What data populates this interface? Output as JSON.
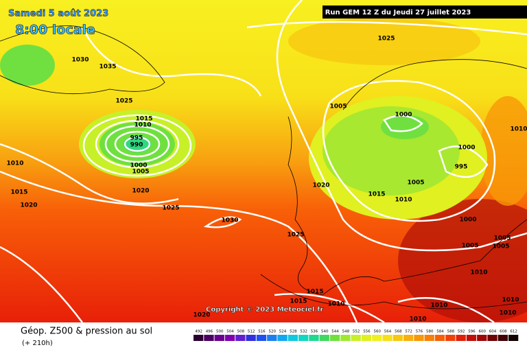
{
  "header": {
    "date": "Samedi 5 août 2023",
    "time": "8:00 locale",
    "run": "Run GEM 12 Z du Jeudi 27 juillet 2023"
  },
  "isobar_labels": [
    1030,
    1035,
    1025,
    1015,
    1010,
    995,
    990,
    1000,
    1005,
    1010,
    1015,
    1020,
    1020,
    1025,
    1030,
    1025,
    1005,
    1000,
    1000,
    995,
    1020,
    1005,
    1015,
    1010,
    1000,
    1025,
    1005,
    1005,
    1005,
    1010,
    1010,
    1015,
    1015,
    1010,
    1010,
    1010,
    1010,
    1010,
    1020
  ],
  "copyright": "Copyright © 2023 Meteociel.fr",
  "footer": {
    "title": "Géop. Z500 & pression au sol",
    "lead": "(+ 210h)"
  },
  "color_scale": {
    "labels": [
      492,
      496,
      500,
      504,
      508,
      512,
      516,
      520,
      524,
      528,
      532,
      536,
      540,
      544,
      548,
      552,
      556,
      560,
      564,
      568,
      572,
      576,
      580,
      584,
      588,
      592,
      596,
      600,
      604,
      608,
      612
    ],
    "colors": [
      "#2a0030",
      "#4b0060",
      "#6a0090",
      "#8000b0",
      "#6020d0",
      "#3030e0",
      "#2050f0",
      "#1a80f0",
      "#10a8f0",
      "#10c8e0",
      "#10d8c0",
      "#20d890",
      "#40d860",
      "#70e040",
      "#a0e830",
      "#c8f028",
      "#e0f020",
      "#f0f020",
      "#f8e018",
      "#f8c810",
      "#f8b010",
      "#f89808",
      "#f88008",
      "#f86008",
      "#f04008",
      "#e02008",
      "#c01008",
      "#a00808",
      "#700404",
      "#400202",
      "#100000"
    ]
  }
}
